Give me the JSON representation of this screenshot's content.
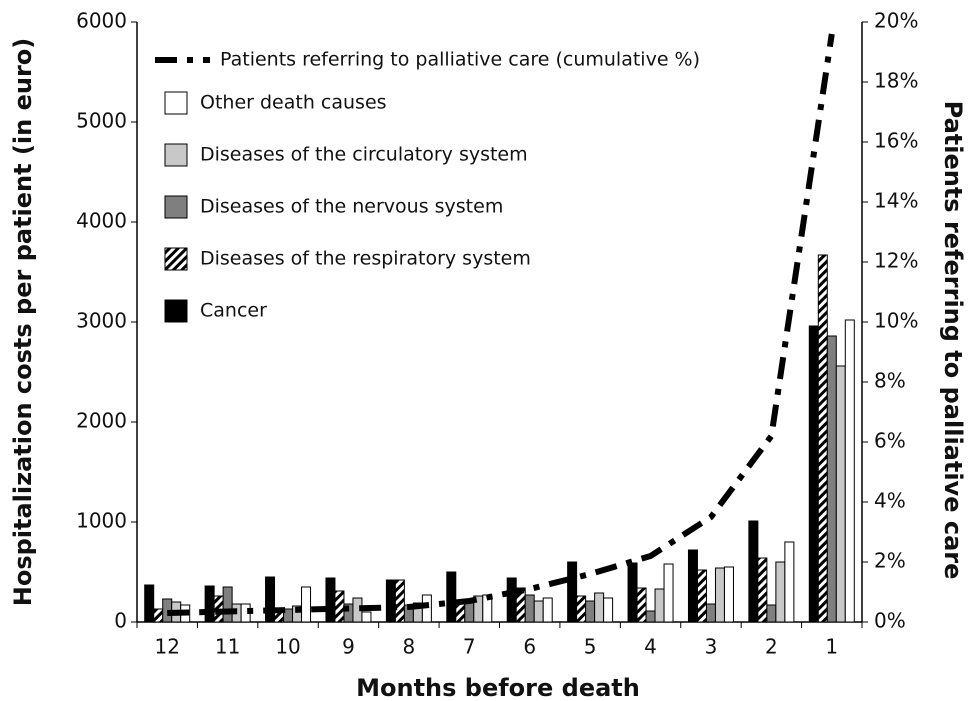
{
  "chart_data": {
    "type": "bar",
    "x_label": "Months before death",
    "y_label": "Hospitalization costs per patient (in euro)",
    "y2_label": "Patients referring to palliative care",
    "categories": [
      "12",
      "11",
      "10",
      "9",
      "8",
      "7",
      "6",
      "5",
      "4",
      "3",
      "2",
      "1"
    ],
    "series": [
      {
        "name": "Cancer",
        "color": "#000000",
        "values": [
          370,
          360,
          450,
          440,
          420,
          500,
          440,
          600,
          590,
          720,
          1010,
          2960
        ]
      },
      {
        "name": "Diseases of the respiratory system",
        "color": "#000000",
        "pattern": "hatch",
        "values": [
          130,
          260,
          100,
          310,
          420,
          190,
          340,
          260,
          340,
          520,
          640,
          3670
        ]
      },
      {
        "name": "Diseases of the nervous system",
        "color": "#7f7f7f",
        "values": [
          230,
          350,
          130,
          180,
          170,
          200,
          270,
          210,
          110,
          180,
          170,
          2860
        ]
      },
      {
        "name": "Diseases of the circulatory system",
        "color": "#c8c8c8",
        "values": [
          200,
          180,
          160,
          240,
          190,
          260,
          210,
          290,
          330,
          540,
          600,
          2560
        ]
      },
      {
        "name": "Other death causes",
        "color": "#ffffff",
        "values": [
          170,
          180,
          350,
          100,
          270,
          270,
          240,
          240,
          580,
          550,
          800,
          3020
        ]
      },
      {
        "name": "Patients referring to palliative care (cumulative %)",
        "type": "line",
        "axis": "y2",
        "color": "#000000",
        "values": [
          0.3,
          0.35,
          0.4,
          0.45,
          0.5,
          0.7,
          1.1,
          1.6,
          2.2,
          3.5,
          6.2,
          19.6
        ]
      }
    ],
    "legend_order": [
      5,
      4,
      3,
      2,
      1,
      0
    ],
    "ylim": [
      0,
      6000
    ],
    "yticks": [
      0,
      1000,
      2000,
      3000,
      4000,
      5000,
      6000
    ],
    "y2lim": [
      0,
      20
    ],
    "y2ticks": [
      {
        "value": 0,
        "label": "0%"
      },
      {
        "value": 2,
        "label": "2%"
      },
      {
        "value": 4,
        "label": "4%"
      },
      {
        "value": 6,
        "label": "6%"
      },
      {
        "value": 8,
        "label": "8%"
      },
      {
        "value": 10,
        "label": "10%"
      },
      {
        "value": 12,
        "label": "12%"
      },
      {
        "value": 14,
        "label": "14%"
      },
      {
        "value": 16,
        "label": "16%"
      },
      {
        "value": 18,
        "label": "18%"
      },
      {
        "value": 20,
        "label": "20%"
      }
    ],
    "legend": "upper left",
    "grid": false
  }
}
